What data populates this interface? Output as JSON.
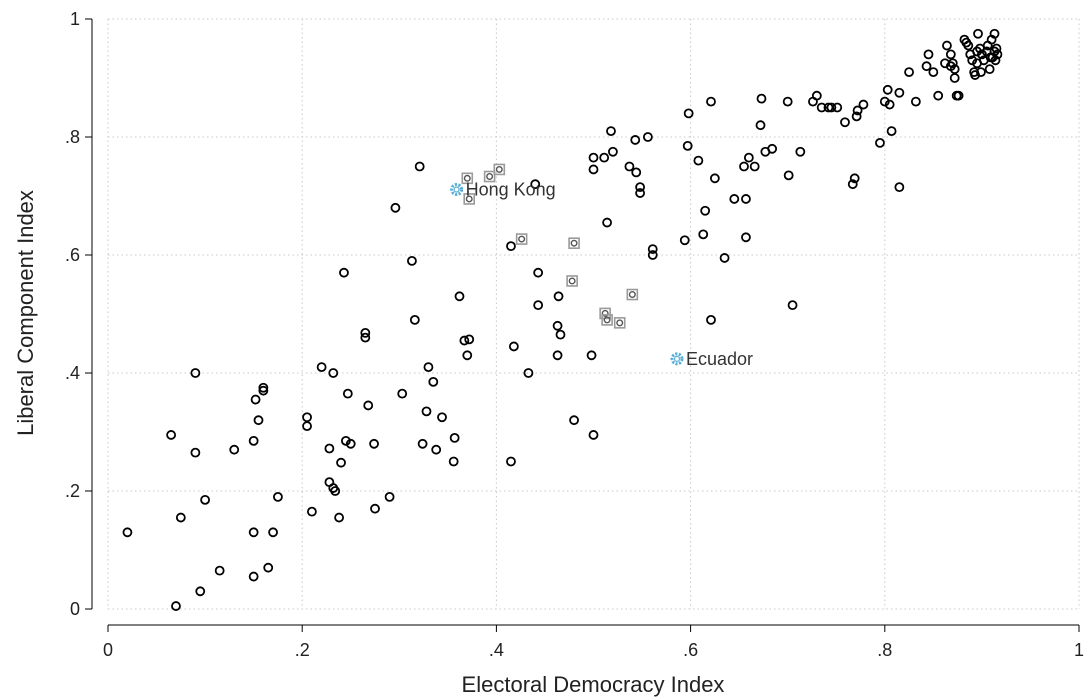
{
  "chart_data": {
    "type": "scatter",
    "xlabel": "Electoral Democracy Index",
    "ylabel": "Liberal Component Index",
    "xlim": [
      0,
      1
    ],
    "ylim": [
      0,
      1
    ],
    "grid": true,
    "x_tick_labels": [
      "0",
      ".2",
      ".4",
      ".6",
      ".8",
      "1"
    ],
    "y_tick_labels": [
      "0",
      ".2",
      ".4",
      ".6",
      ".8",
      "1"
    ],
    "colors": {
      "main": "#000000",
      "gray": "#9a9a9a",
      "highlight": "#5aaed8",
      "grid": "#c8c8c8"
    },
    "series": [
      {
        "style": "main",
        "points": [
          [
            0.02,
            0.13
          ],
          [
            0.07,
            0.005
          ],
          [
            0.065,
            0.295
          ],
          [
            0.075,
            0.155
          ],
          [
            0.09,
            0.4
          ],
          [
            0.09,
            0.265
          ],
          [
            0.095,
            0.03
          ],
          [
            0.1,
            0.185
          ],
          [
            0.115,
            0.065
          ],
          [
            0.13,
            0.27
          ],
          [
            0.15,
            0.055
          ],
          [
            0.15,
            0.13
          ],
          [
            0.15,
            0.285
          ],
          [
            0.152,
            0.355
          ],
          [
            0.155,
            0.32
          ],
          [
            0.16,
            0.375
          ],
          [
            0.16,
            0.37
          ],
          [
            0.165,
            0.07
          ],
          [
            0.17,
            0.13
          ],
          [
            0.175,
            0.19
          ],
          [
            0.205,
            0.31
          ],
          [
            0.205,
            0.325
          ],
          [
            0.21,
            0.165
          ],
          [
            0.22,
            0.41
          ],
          [
            0.228,
            0.215
          ],
          [
            0.228,
            0.272
          ],
          [
            0.232,
            0.205
          ],
          [
            0.232,
            0.4
          ],
          [
            0.234,
            0.2
          ],
          [
            0.238,
            0.155
          ],
          [
            0.24,
            0.248
          ],
          [
            0.243,
            0.57
          ],
          [
            0.245,
            0.285
          ],
          [
            0.247,
            0.365
          ],
          [
            0.25,
            0.28
          ],
          [
            0.265,
            0.46
          ],
          [
            0.265,
            0.468
          ],
          [
            0.268,
            0.345
          ],
          [
            0.274,
            0.28
          ],
          [
            0.275,
            0.17
          ],
          [
            0.29,
            0.19
          ],
          [
            0.296,
            0.68
          ],
          [
            0.303,
            0.365
          ],
          [
            0.313,
            0.59
          ],
          [
            0.316,
            0.49
          ],
          [
            0.321,
            0.75
          ],
          [
            0.324,
            0.28
          ],
          [
            0.328,
            0.335
          ],
          [
            0.33,
            0.41
          ],
          [
            0.335,
            0.385
          ],
          [
            0.338,
            0.27
          ],
          [
            0.344,
            0.325
          ],
          [
            0.356,
            0.25
          ],
          [
            0.357,
            0.29
          ],
          [
            0.362,
            0.53
          ],
          [
            0.367,
            0.455
          ],
          [
            0.37,
            0.43
          ],
          [
            0.372,
            0.457
          ],
          [
            0.415,
            0.25
          ],
          [
            0.415,
            0.615
          ],
          [
            0.418,
            0.445
          ],
          [
            0.433,
            0.4
          ],
          [
            0.44,
            0.72
          ],
          [
            0.443,
            0.515
          ],
          [
            0.443,
            0.57
          ],
          [
            0.463,
            0.48
          ],
          [
            0.463,
            0.43
          ],
          [
            0.464,
            0.53
          ],
          [
            0.466,
            0.465
          ],
          [
            0.48,
            0.32
          ],
          [
            0.498,
            0.43
          ],
          [
            0.5,
            0.745
          ],
          [
            0.5,
            0.765
          ],
          [
            0.5,
            0.295
          ],
          [
            0.511,
            0.765
          ],
          [
            0.514,
            0.655
          ],
          [
            0.518,
            0.81
          ],
          [
            0.52,
            0.775
          ],
          [
            0.537,
            0.75
          ],
          [
            0.543,
            0.795
          ],
          [
            0.544,
            0.74
          ],
          [
            0.548,
            0.705
          ],
          [
            0.548,
            0.715
          ],
          [
            0.556,
            0.8
          ],
          [
            0.561,
            0.6
          ],
          [
            0.561,
            0.61
          ],
          [
            0.594,
            0.625
          ],
          [
            0.597,
            0.785
          ],
          [
            0.598,
            0.84
          ],
          [
            0.608,
            0.76
          ],
          [
            0.613,
            0.635
          ],
          [
            0.615,
            0.675
          ],
          [
            0.621,
            0.86
          ],
          [
            0.621,
            0.49
          ],
          [
            0.625,
            0.73
          ],
          [
            0.635,
            0.595
          ],
          [
            0.645,
            0.695
          ],
          [
            0.655,
            0.75
          ],
          [
            0.657,
            0.695
          ],
          [
            0.657,
            0.63
          ],
          [
            0.66,
            0.765
          ],
          [
            0.666,
            0.75
          ],
          [
            0.672,
            0.82
          ],
          [
            0.673,
            0.865
          ],
          [
            0.677,
            0.775
          ],
          [
            0.684,
            0.78
          ],
          [
            0.7,
            0.86
          ],
          [
            0.701,
            0.735
          ],
          [
            0.705,
            0.515
          ],
          [
            0.713,
            0.775
          ],
          [
            0.726,
            0.86
          ],
          [
            0.73,
            0.87
          ],
          [
            0.735,
            0.85
          ],
          [
            0.742,
            0.85
          ],
          [
            0.745,
            0.85
          ],
          [
            0.751,
            0.85
          ],
          [
            0.759,
            0.825
          ],
          [
            0.767,
            0.72
          ],
          [
            0.769,
            0.73
          ],
          [
            0.771,
            0.835
          ],
          [
            0.772,
            0.845
          ],
          [
            0.778,
            0.855
          ],
          [
            0.795,
            0.79
          ],
          [
            0.8,
            0.86
          ],
          [
            0.803,
            0.88
          ],
          [
            0.805,
            0.855
          ],
          [
            0.807,
            0.81
          ],
          [
            0.815,
            0.715
          ],
          [
            0.815,
            0.875
          ],
          [
            0.825,
            0.91
          ],
          [
            0.832,
            0.86
          ],
          [
            0.843,
            0.92
          ],
          [
            0.845,
            0.94
          ],
          [
            0.85,
            0.91
          ],
          [
            0.855,
            0.87
          ],
          [
            0.862,
            0.925
          ],
          [
            0.864,
            0.955
          ],
          [
            0.868,
            0.94
          ],
          [
            0.868,
            0.92
          ],
          [
            0.87,
            0.925
          ],
          [
            0.872,
            0.915
          ],
          [
            0.872,
            0.9
          ],
          [
            0.874,
            0.87
          ],
          [
            0.876,
            0.87
          ],
          [
            0.882,
            0.965
          ],
          [
            0.884,
            0.96
          ],
          [
            0.886,
            0.955
          ],
          [
            0.888,
            0.94
          ],
          [
            0.89,
            0.93
          ],
          [
            0.892,
            0.91
          ],
          [
            0.893,
            0.905
          ],
          [
            0.895,
            0.925
          ],
          [
            0.895,
            0.945
          ],
          [
            0.896,
            0.975
          ],
          [
            0.898,
            0.95
          ],
          [
            0.899,
            0.91
          ],
          [
            0.9,
            0.94
          ],
          [
            0.902,
            0.93
          ],
          [
            0.905,
            0.945
          ],
          [
            0.906,
            0.955
          ],
          [
            0.908,
            0.915
          ],
          [
            0.909,
            0.935
          ],
          [
            0.91,
            0.965
          ],
          [
            0.911,
            0.935
          ],
          [
            0.913,
            0.945
          ],
          [
            0.913,
            0.975
          ],
          [
            0.914,
            0.93
          ],
          [
            0.915,
            0.95
          ],
          [
            0.916,
            0.94
          ]
        ]
      },
      {
        "style": "gray",
        "points": [
          [
            0.37,
            0.73
          ],
          [
            0.372,
            0.695
          ],
          [
            0.393,
            0.733
          ],
          [
            0.403,
            0.745
          ],
          [
            0.426,
            0.627
          ],
          [
            0.478,
            0.556
          ],
          [
            0.48,
            0.62
          ],
          [
            0.512,
            0.501
          ],
          [
            0.514,
            0.49
          ],
          [
            0.527,
            0.485
          ],
          [
            0.54,
            0.533
          ]
        ]
      },
      {
        "style": "highlight",
        "points": [
          [
            0.359,
            0.711
          ],
          [
            0.586,
            0.424
          ]
        ]
      }
    ],
    "annotations": [
      {
        "text": "Hong Kong",
        "x": 0.359,
        "y": 0.711
      },
      {
        "text": "Ecuador",
        "x": 0.586,
        "y": 0.424
      }
    ]
  }
}
